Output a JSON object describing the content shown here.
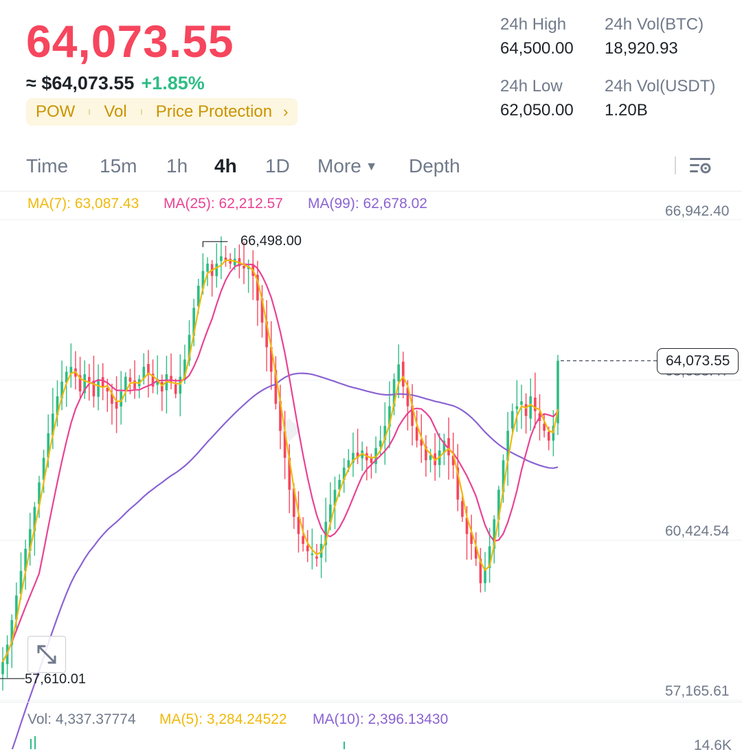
{
  "ticker": {
    "last_price": "64,073.55",
    "fiat_price": "≈ $64,073.55",
    "change_pct": "+1.85%",
    "tags": [
      "POW",
      "Vol",
      "Price Protection"
    ],
    "tag_arrow": "›"
  },
  "stats": {
    "high_label": "24h High",
    "high_value": "64,500.00",
    "low_label": "24h Low",
    "low_value": "62,050.00",
    "vol_btc_label": "24h Vol(BTC)",
    "vol_btc_value": "18,920.93",
    "vol_usdt_label": "24h Vol(USDT)",
    "vol_usdt_value": "1.20B"
  },
  "tabs": [
    {
      "label": "Time",
      "active": false
    },
    {
      "label": "15m",
      "active": false
    },
    {
      "label": "1h",
      "active": false
    },
    {
      "label": "4h",
      "active": true
    },
    {
      "label": "1D",
      "active": false
    },
    {
      "label": "More",
      "active": false
    },
    {
      "label": "Depth",
      "active": false
    }
  ],
  "more_caret": "▼",
  "colors": {
    "up": "#2ebd85",
    "down": "#f6465d",
    "ma7": "#f0b90b",
    "ma25": "#e84393",
    "ma99": "#8a63d2",
    "ma5_vol": "#f0b90b",
    "ma10_vol": "#8a63d2"
  },
  "indicators": {
    "ma7": "MA(7): 63,087.43",
    "ma25": "MA(25): 62,212.57",
    "ma99": "MA(99): 62,678.02"
  },
  "volume": {
    "vol": "Vol: 4,337.37774",
    "ma5": "MA(5): 3,284.24522",
    "ma10": "MA(10): 2,396.13430",
    "axis_top": "14.6K"
  },
  "chart_data": {
    "type": "candlestick",
    "ylim": [
      55900,
      67500
    ],
    "y_ticks": [
      {
        "value": 66942.4,
        "label": "66,942.40"
      },
      {
        "value": 63683.47,
        "label": "63,683.47"
      },
      {
        "value": 60424.54,
        "label": "60,424.54"
      },
      {
        "value": 57165.61,
        "label": "57,165.61"
      }
    ],
    "last_price": 64073.55,
    "last_price_label": "64,073.55",
    "high_marker": {
      "value": 66498.0,
      "label": "66,498.00",
      "index": 44
    },
    "low_marker": {
      "value": 57610.01,
      "label": "57,610.01",
      "index": 0
    },
    "closes": [
      57950,
      58300,
      58800,
      59300,
      59800,
      60250,
      60650,
      61100,
      61600,
      62100,
      62600,
      63000,
      63350,
      63650,
      63850,
      63950,
      63750,
      63450,
      63800,
      63650,
      63350,
      63700,
      63550,
      63450,
      63200,
      63100,
      63450,
      63750,
      63650,
      63500,
      63700,
      63950,
      63800,
      63550,
      63700,
      63450,
      63800,
      63650,
      63400,
      63750,
      64100,
      64600,
      65150,
      65600,
      65900,
      66050,
      65800,
      66050,
      66200,
      66100,
      66050,
      66150,
      66000,
      65950,
      66000,
      65800,
      65300,
      64850,
      64350,
      63850,
      63200,
      62650,
      62100,
      61450,
      60900,
      60550,
      60350,
      60200,
      60150,
      60050,
      60350,
      60800,
      61150,
      61450,
      61650,
      61900,
      62050,
      62200,
      62100,
      62250,
      62050,
      62000,
      62300,
      62450,
      62750,
      63150,
      63700,
      64000,
      63550,
      63150,
      62750,
      62450,
      62350,
      62050,
      62150,
      61950,
      62250,
      62450,
      62150,
      61950,
      61250,
      60900,
      60550,
      60350,
      60050,
      59550,
      59850,
      60300,
      60850,
      61450,
      62050,
      62650,
      63050,
      63150,
      63250,
      62950,
      63350,
      63050,
      62850,
      62650,
      62450,
      62750,
      64073.55
    ],
    "ma7_last": 63087.43,
    "ma25_last": 62212.57,
    "ma99_last": 62678.02
  }
}
